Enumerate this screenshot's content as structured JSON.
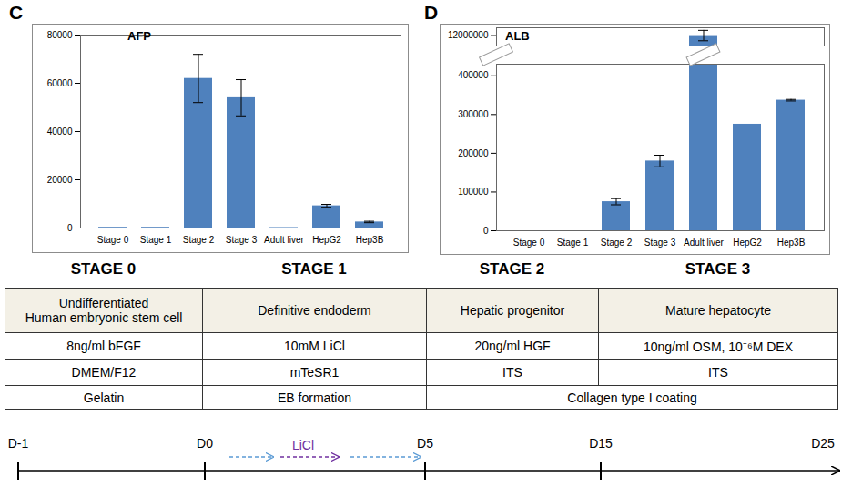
{
  "chart_data": [
    {
      "panel": "C",
      "type": "bar",
      "title": "AFP",
      "categories": [
        "Stage 0",
        "Stage 1",
        "Stage 2",
        "Stage 3",
        "Adult liver",
        "HepG2",
        "Hep3B"
      ],
      "values": [
        300,
        300,
        62000,
        54000,
        200,
        9200,
        2500
      ],
      "errors": [
        null,
        null,
        10000,
        7500,
        null,
        600,
        300
      ],
      "color": "#4f81bd",
      "ylim": [
        0,
        80000
      ],
      "yticks": [
        0,
        20000,
        40000,
        60000,
        80000
      ]
    },
    {
      "panel": "D",
      "type": "bar",
      "title": "ALB",
      "categories": [
        "Stage 0",
        "Stage 1",
        "Stage 2",
        "Stage 3",
        "Adult liver",
        "HepG2",
        "Hep3B"
      ],
      "values": [
        0,
        0,
        75000,
        180000,
        12000000,
        275000,
        337000
      ],
      "errors": [
        null,
        null,
        8000,
        15000,
        100000,
        null,
        2000
      ],
      "color": "#4f81bd",
      "ylim": [
        0,
        12150000
      ],
      "y_break": [
        430000,
        11800000
      ],
      "yticks": [
        0,
        100000,
        200000,
        300000,
        400000,
        12000000
      ]
    }
  ],
  "table": {
    "headers": [
      "STAGE 0",
      "STAGE 1",
      "STAGE 2",
      "STAGE 3"
    ],
    "rows": [
      [
        "Undifferentiated\nHuman embryonic stem cell",
        "Definitive endoderm",
        "Hepatic progenitor",
        "Mature hepatocyte"
      ],
      [
        "8ng/ml bFGF",
        "10mM LiCl",
        "20ng/ml HGF",
        "10ng/ml OSM, 10⁻⁶M DEX"
      ],
      [
        "DMEM/F12",
        "mTeSR1",
        "ITS",
        "ITS"
      ],
      [
        "Gelatin",
        "EB formation",
        "Collagen type I coating"
      ]
    ]
  },
  "timeline": {
    "days": [
      "D-1",
      "D0",
      "D5",
      "D15",
      "D25"
    ],
    "label": "LiCl"
  }
}
